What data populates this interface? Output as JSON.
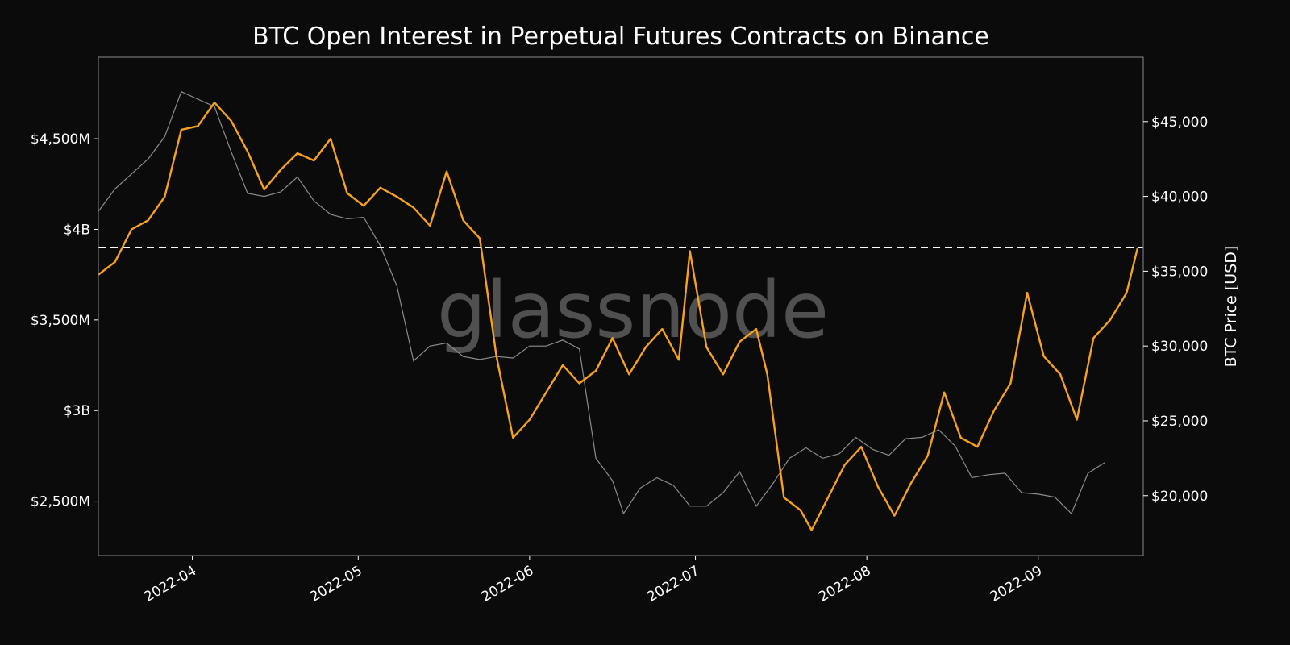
{
  "chart_data": {
    "type": "line",
    "title": "BTC Open Interest in Perpetual Futures Contracts on Binance",
    "watermark": "glassnode",
    "xlabel": "",
    "ylabel_left": "",
    "ylabel_right": "BTC Price [USD]",
    "x_range": [
      "2022-03-15",
      "2022-09-20"
    ],
    "x_ticks": [
      {
        "date": "2022-04-01",
        "label": "2022-04"
      },
      {
        "date": "2022-05-01",
        "label": "2022-05"
      },
      {
        "date": "2022-06-01",
        "label": "2022-06"
      },
      {
        "date": "2022-07-01",
        "label": "2022-07"
      },
      {
        "date": "2022-08-01",
        "label": "2022-08"
      },
      {
        "date": "2022-09-01",
        "label": "2022-09"
      }
    ],
    "y_left": {
      "range": [
        2200,
        4950
      ],
      "ticks": [
        {
          "value": 2500,
          "label": "$2,500M"
        },
        {
          "value": 3000,
          "label": "$3B"
        },
        {
          "value": 3500,
          "label": "$3,500M"
        },
        {
          "value": 4000,
          "label": "$4B"
        },
        {
          "value": 4500,
          "label": "$4,500M"
        }
      ]
    },
    "y_right": {
      "range": [
        16000,
        49300
      ],
      "ticks": [
        {
          "value": 20000,
          "label": "$20,000"
        },
        {
          "value": 25000,
          "label": "$25,000"
        },
        {
          "value": 30000,
          "label": "$30,000"
        },
        {
          "value": 35000,
          "label": "$35,000"
        },
        {
          "value": 40000,
          "label": "$40,000"
        },
        {
          "value": 45000,
          "label": "$45,000"
        }
      ]
    },
    "reference_line": {
      "value": 3900,
      "axis": "left",
      "style": "dashed",
      "color": "#ffffff"
    },
    "colors": {
      "open_interest": "#f7a21b",
      "price": "#8c8c8c",
      "background": "#0b0b0b",
      "frame": "#8a8a8a"
    },
    "series": [
      {
        "key": "open_interest",
        "axis": "left",
        "points": [
          [
            "2022-03-15",
            3750
          ],
          [
            "2022-03-18",
            3820
          ],
          [
            "2022-03-21",
            4000
          ],
          [
            "2022-03-24",
            4050
          ],
          [
            "2022-03-27",
            4180
          ],
          [
            "2022-03-30",
            4550
          ],
          [
            "2022-04-02",
            4570
          ],
          [
            "2022-04-05",
            4700
          ],
          [
            "2022-04-08",
            4600
          ],
          [
            "2022-04-11",
            4430
          ],
          [
            "2022-04-14",
            4220
          ],
          [
            "2022-04-17",
            4330
          ],
          [
            "2022-04-20",
            4420
          ],
          [
            "2022-04-23",
            4380
          ],
          [
            "2022-04-26",
            4500
          ],
          [
            "2022-04-29",
            4200
          ],
          [
            "2022-05-02",
            4130
          ],
          [
            "2022-05-05",
            4230
          ],
          [
            "2022-05-08",
            4180
          ],
          [
            "2022-05-11",
            4120
          ],
          [
            "2022-05-14",
            4020
          ],
          [
            "2022-05-17",
            4320
          ],
          [
            "2022-05-20",
            4050
          ],
          [
            "2022-05-23",
            3950
          ],
          [
            "2022-05-26",
            3300
          ],
          [
            "2022-05-29",
            2850
          ],
          [
            "2022-06-01",
            2950
          ],
          [
            "2022-06-04",
            3100
          ],
          [
            "2022-06-07",
            3250
          ],
          [
            "2022-06-10",
            3150
          ],
          [
            "2022-06-13",
            3220
          ],
          [
            "2022-06-16",
            3400
          ],
          [
            "2022-06-19",
            3200
          ],
          [
            "2022-06-22",
            3350
          ],
          [
            "2022-06-25",
            3450
          ],
          [
            "2022-06-28",
            3280
          ],
          [
            "2022-06-30",
            3880
          ],
          [
            "2022-07-03",
            3350
          ],
          [
            "2022-07-06",
            3200
          ],
          [
            "2022-07-09",
            3380
          ],
          [
            "2022-07-12",
            3450
          ],
          [
            "2022-07-14",
            3200
          ],
          [
            "2022-07-17",
            2520
          ],
          [
            "2022-07-20",
            2450
          ],
          [
            "2022-07-22",
            2340
          ],
          [
            "2022-07-25",
            2520
          ],
          [
            "2022-07-28",
            2700
          ],
          [
            "2022-07-31",
            2800
          ],
          [
            "2022-08-03",
            2580
          ],
          [
            "2022-08-06",
            2420
          ],
          [
            "2022-08-09",
            2600
          ],
          [
            "2022-08-12",
            2750
          ],
          [
            "2022-08-15",
            3100
          ],
          [
            "2022-08-18",
            2850
          ],
          [
            "2022-08-21",
            2800
          ],
          [
            "2022-08-24",
            3000
          ],
          [
            "2022-08-27",
            3150
          ],
          [
            "2022-08-30",
            3650
          ],
          [
            "2022-09-02",
            3300
          ],
          [
            "2022-09-05",
            3200
          ],
          [
            "2022-09-08",
            2950
          ],
          [
            "2022-09-11",
            3400
          ],
          [
            "2022-09-14",
            3500
          ],
          [
            "2022-09-17",
            3650
          ],
          [
            "2022-09-19",
            3900
          ]
        ]
      },
      {
        "key": "price",
        "axis": "right",
        "points": [
          [
            "2022-03-15",
            39000
          ],
          [
            "2022-03-18",
            40500
          ],
          [
            "2022-03-21",
            41500
          ],
          [
            "2022-03-24",
            42500
          ],
          [
            "2022-03-27",
            44000
          ],
          [
            "2022-03-30",
            47000
          ],
          [
            "2022-04-02",
            46500
          ],
          [
            "2022-04-05",
            46000
          ],
          [
            "2022-04-08",
            43000
          ],
          [
            "2022-04-11",
            40200
          ],
          [
            "2022-04-14",
            40000
          ],
          [
            "2022-04-17",
            40300
          ],
          [
            "2022-04-20",
            41300
          ],
          [
            "2022-04-23",
            39700
          ],
          [
            "2022-04-26",
            38800
          ],
          [
            "2022-04-29",
            38500
          ],
          [
            "2022-05-02",
            38600
          ],
          [
            "2022-05-05",
            36700
          ],
          [
            "2022-05-08",
            34000
          ],
          [
            "2022-05-11",
            29000
          ],
          [
            "2022-05-14",
            30000
          ],
          [
            "2022-05-17",
            30200
          ],
          [
            "2022-05-20",
            29300
          ],
          [
            "2022-05-23",
            29100
          ],
          [
            "2022-05-26",
            29300
          ],
          [
            "2022-05-29",
            29200
          ],
          [
            "2022-06-01",
            30000
          ],
          [
            "2022-06-04",
            30000
          ],
          [
            "2022-06-07",
            30400
          ],
          [
            "2022-06-10",
            29800
          ],
          [
            "2022-06-13",
            22500
          ],
          [
            "2022-06-16",
            21000
          ],
          [
            "2022-06-18",
            18800
          ],
          [
            "2022-06-21",
            20500
          ],
          [
            "2022-06-24",
            21200
          ],
          [
            "2022-06-27",
            20700
          ],
          [
            "2022-06-30",
            19300
          ],
          [
            "2022-07-03",
            19300
          ],
          [
            "2022-07-06",
            20200
          ],
          [
            "2022-07-09",
            21600
          ],
          [
            "2022-07-12",
            19300
          ],
          [
            "2022-07-15",
            20800
          ],
          [
            "2022-07-18",
            22500
          ],
          [
            "2022-07-21",
            23200
          ],
          [
            "2022-07-24",
            22500
          ],
          [
            "2022-07-27",
            22800
          ],
          [
            "2022-07-30",
            23900
          ],
          [
            "2022-08-02",
            23100
          ],
          [
            "2022-08-05",
            22700
          ],
          [
            "2022-08-08",
            23800
          ],
          [
            "2022-08-11",
            23900
          ],
          [
            "2022-08-14",
            24400
          ],
          [
            "2022-08-17",
            23300
          ],
          [
            "2022-08-20",
            21200
          ],
          [
            "2022-08-23",
            21400
          ],
          [
            "2022-08-26",
            21500
          ],
          [
            "2022-08-29",
            20200
          ],
          [
            "2022-09-01",
            20100
          ],
          [
            "2022-09-04",
            19900
          ],
          [
            "2022-09-07",
            18800
          ],
          [
            "2022-09-10",
            21500
          ],
          [
            "2022-09-13",
            22200
          ]
        ]
      }
    ]
  }
}
